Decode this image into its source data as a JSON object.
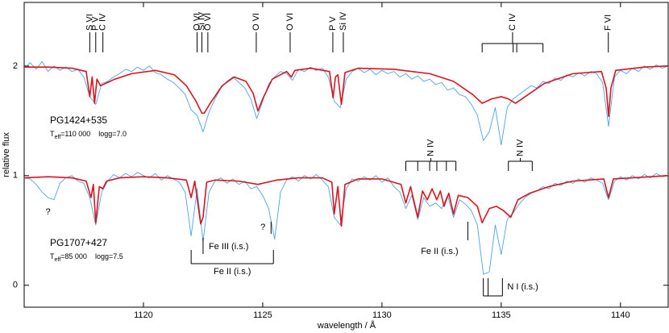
{
  "chart_data": {
    "type": "line",
    "xlabel": "wavelength / Å",
    "ylabel": "relative flux",
    "xlim": [
      1115,
      1142
    ],
    "ylim": [
      -0.2,
      2.58
    ],
    "xticks": [
      1120,
      1125,
      1130,
      1135,
      1140
    ],
    "yticks": [
      0,
      1,
      2
    ],
    "grid": false,
    "series": [
      {
        "color": "#4aa3e6",
        "x": [
          1115.0,
          1115.25,
          1115.5,
          1115.75,
          1116.0,
          1116.25,
          1116.5,
          1116.75,
          1117.0,
          1117.25,
          1117.5,
          1117.75,
          1118.0,
          1118.25,
          1118.5,
          1118.75,
          1119.0,
          1119.25,
          1119.5,
          1119.75,
          1120.0,
          1120.25,
          1120.5,
          1120.75,
          1121.0,
          1121.25,
          1121.5,
          1121.75,
          1122.0,
          1122.25,
          1122.5,
          1122.75,
          1123.0,
          1123.25,
          1123.5,
          1123.75,
          1124.0,
          1124.25,
          1124.5,
          1124.75,
          1125.0,
          1125.25,
          1125.5,
          1125.75,
          1126.0,
          1126.25,
          1126.5,
          1126.75,
          1127.0,
          1127.25,
          1127.5,
          1127.75,
          1128.0,
          1128.25,
          1128.5,
          1128.75,
          1129.0,
          1129.25,
          1129.5,
          1129.75,
          1130.0,
          1130.25,
          1130.5,
          1130.75,
          1131.0,
          1131.25,
          1131.5,
          1131.75,
          1132.0,
          1132.25,
          1132.5,
          1132.75,
          1133.0,
          1133.25,
          1133.5,
          1133.75,
          1134.0,
          1134.25,
          1134.5,
          1134.75,
          1135.0,
          1135.25,
          1135.5,
          1135.75,
          1136.0,
          1136.25,
          1136.5,
          1136.75,
          1137.0,
          1137.25,
          1137.5,
          1137.75,
          1138.0,
          1138.25,
          1138.5,
          1138.75,
          1139.0,
          1139.25,
          1139.5,
          1139.75,
          1140.0,
          1140.25,
          1140.5,
          1140.75,
          1141.0,
          1141.25,
          1141.5,
          1141.75,
          1142.0
        ],
        "values": [
          1.98,
          2.03,
          1.97,
          2.04,
          1.95,
          2.0,
          1.96,
          1.99,
          1.95,
          1.97,
          1.9,
          1.72,
          1.65,
          1.84,
          1.86,
          1.9,
          1.93,
          1.97,
          1.95,
          1.99,
          1.96,
          2.0,
          1.94,
          1.92,
          1.88,
          1.85,
          1.8,
          1.74,
          1.6,
          1.55,
          1.4,
          1.58,
          1.7,
          1.8,
          1.86,
          1.9,
          1.85,
          1.8,
          1.7,
          1.52,
          1.68,
          1.84,
          1.9,
          1.95,
          1.93,
          1.87,
          1.97,
          1.95,
          1.99,
          1.96,
          1.98,
          1.9,
          1.68,
          1.62,
          1.88,
          1.95,
          1.98,
          1.94,
          1.97,
          1.92,
          1.96,
          1.93,
          1.95,
          1.9,
          1.93,
          1.88,
          1.91,
          1.86,
          1.88,
          1.83,
          1.85,
          1.78,
          1.8,
          1.74,
          1.72,
          1.65,
          1.55,
          1.32,
          1.4,
          1.62,
          1.28,
          1.62,
          1.7,
          1.74,
          1.78,
          1.82,
          1.8,
          1.86,
          1.84,
          1.89,
          1.87,
          1.92,
          1.9,
          1.94,
          1.91,
          1.95,
          1.93,
          1.85,
          1.45,
          1.9,
          1.96,
          1.93,
          1.98,
          1.95,
          2.0,
          1.97,
          2.01,
          1.98,
          2.0
        ]
      },
      {
        "color": "#d9141e",
        "x": [
          1115,
          1116,
          1117,
          1117.6,
          1117.75,
          1117.85,
          1117.95,
          1118.05,
          1118.2,
          1118.4,
          1118.8,
          1119.5,
          1120.5,
          1121.3,
          1121.8,
          1122.2,
          1122.45,
          1122.55,
          1122.8,
          1123.3,
          1123.8,
          1124.3,
          1124.6,
          1124.8,
          1125.0,
          1125.4,
          1126.0,
          1126.2,
          1126.35,
          1127.0,
          1127.8,
          1127.95,
          1128.05,
          1128.15,
          1128.3,
          1128.45,
          1129.0,
          1130.5,
          1132.0,
          1133.0,
          1133.8,
          1134.2,
          1134.6,
          1135.0,
          1135.3,
          1135.6,
          1136.0,
          1136.8,
          1138.0,
          1139.2,
          1139.4,
          1139.5,
          1139.6,
          1139.8,
          1141.0,
          1142
        ],
        "values": [
          1.99,
          1.99,
          1.98,
          1.95,
          1.72,
          1.9,
          1.66,
          1.88,
          1.82,
          1.84,
          1.88,
          1.93,
          1.96,
          1.92,
          1.82,
          1.68,
          1.57,
          1.57,
          1.66,
          1.82,
          1.9,
          1.86,
          1.75,
          1.59,
          1.7,
          1.88,
          1.95,
          1.9,
          1.96,
          1.98,
          1.95,
          1.71,
          1.9,
          1.92,
          1.65,
          1.94,
          1.98,
          1.97,
          1.93,
          1.86,
          1.74,
          1.66,
          1.7,
          1.72,
          1.7,
          1.66,
          1.72,
          1.84,
          1.93,
          1.95,
          1.8,
          1.54,
          1.8,
          1.96,
          1.99,
          2.0
        ]
      },
      {
        "color": "#4aa3e6",
        "x": [
          1115.0,
          1115.25,
          1115.5,
          1115.75,
          1116.0,
          1116.25,
          1116.5,
          1116.75,
          1117.0,
          1117.25,
          1117.5,
          1117.75,
          1118.0,
          1118.25,
          1118.5,
          1118.75,
          1119.0,
          1119.25,
          1119.5,
          1119.75,
          1120.0,
          1120.25,
          1120.5,
          1120.75,
          1121.0,
          1121.25,
          1121.5,
          1121.75,
          1122.0,
          1122.25,
          1122.5,
          1122.75,
          1123.0,
          1123.25,
          1123.5,
          1123.75,
          1124.0,
          1124.25,
          1124.5,
          1124.75,
          1125.0,
          1125.25,
          1125.5,
          1125.75,
          1126.0,
          1126.25,
          1126.5,
          1126.75,
          1127.0,
          1127.25,
          1127.5,
          1127.75,
          1128.0,
          1128.25,
          1128.5,
          1128.75,
          1129.0,
          1129.25,
          1129.5,
          1129.75,
          1130.0,
          1130.25,
          1130.5,
          1130.75,
          1131.0,
          1131.25,
          1131.5,
          1131.75,
          1132.0,
          1132.25,
          1132.5,
          1132.75,
          1133.0,
          1133.25,
          1133.5,
          1133.75,
          1134.0,
          1134.25,
          1134.5,
          1134.75,
          1135.0,
          1135.25,
          1135.5,
          1135.75,
          1136.0,
          1136.25,
          1136.5,
          1136.75,
          1137.0,
          1137.25,
          1137.5,
          1137.75,
          1138.0,
          1138.25,
          1138.5,
          1138.75,
          1139.0,
          1139.25,
          1139.5,
          1139.75,
          1140.0,
          1140.25,
          1140.5,
          1140.75,
          1141.0,
          1141.25,
          1141.5,
          1141.75,
          1142.0
        ],
        "values": [
          0.98,
          0.97,
          0.92,
          0.85,
          0.8,
          0.78,
          0.93,
          0.98,
          1.0,
          0.95,
          0.93,
          0.8,
          0.55,
          0.85,
          0.95,
          1.01,
          0.98,
          1.02,
          0.99,
          1.03,
          1.0,
          0.98,
          1.02,
          0.96,
          1.0,
          0.97,
          0.94,
          0.85,
          0.45,
          0.88,
          0.4,
          0.85,
          0.95,
          0.98,
          0.93,
          0.97,
          0.92,
          0.95,
          0.88,
          0.9,
          0.82,
          0.7,
          0.42,
          0.85,
          0.96,
          0.99,
          0.95,
          1.0,
          0.97,
          1.01,
          0.96,
          0.9,
          0.62,
          0.55,
          0.88,
          0.97,
          0.95,
          0.99,
          0.96,
          1.0,
          0.94,
          0.98,
          0.9,
          0.85,
          0.7,
          0.82,
          0.6,
          0.8,
          0.72,
          0.75,
          0.7,
          0.82,
          0.62,
          0.78,
          0.74,
          0.68,
          0.55,
          0.1,
          0.12,
          0.55,
          0.28,
          0.6,
          0.66,
          0.74,
          0.8,
          0.84,
          0.86,
          0.9,
          0.88,
          0.93,
          0.91,
          0.95,
          0.93,
          0.97,
          0.94,
          0.98,
          0.96,
          0.93,
          0.78,
          0.95,
          0.99,
          0.96,
          1.0,
          0.97,
          1.01,
          0.98,
          1.02,
          0.99,
          1.0
        ]
      },
      {
        "color": "#d9141e",
        "x": [
          1115,
          1116,
          1117,
          1117.6,
          1117.8,
          1117.9,
          1118.0,
          1118.15,
          1118.3,
          1118.45,
          1119,
          1120,
          1121,
          1121.8,
          1122.0,
          1122.15,
          1122.4,
          1122.5,
          1122.65,
          1123,
          1124,
          1124.8,
          1125.6,
          1126.5,
          1127.5,
          1127.9,
          1128.0,
          1128.15,
          1128.3,
          1128.45,
          1129,
          1130,
          1130.8,
          1131.0,
          1131.2,
          1131.5,
          1131.7,
          1131.9,
          1132.1,
          1132.3,
          1132.45,
          1132.6,
          1132.8,
          1133.0,
          1133.2,
          1133.6,
          1134.0,
          1134.2,
          1134.5,
          1134.8,
          1135.1,
          1135.4,
          1135.7,
          1136.2,
          1137.0,
          1138.0,
          1139.3,
          1139.5,
          1139.7,
          1140.5,
          1142
        ],
        "values": [
          0.98,
          0.99,
          0.98,
          0.95,
          0.8,
          0.92,
          0.57,
          0.9,
          0.88,
          0.95,
          0.98,
          0.99,
          0.98,
          0.96,
          0.8,
          0.95,
          0.56,
          0.62,
          0.94,
          0.96,
          0.95,
          0.92,
          0.96,
          0.98,
          0.98,
          0.94,
          0.65,
          0.9,
          0.54,
          0.92,
          0.97,
          0.97,
          0.92,
          0.75,
          0.9,
          0.62,
          0.86,
          0.78,
          0.88,
          0.78,
          0.86,
          0.72,
          0.84,
          0.65,
          0.82,
          0.8,
          0.72,
          0.57,
          0.7,
          0.72,
          0.68,
          0.62,
          0.78,
          0.84,
          0.9,
          0.95,
          0.97,
          0.8,
          0.97,
          0.98,
          1.0
        ]
      }
    ],
    "stars": [
      {
        "name": "PG1424+535",
        "teff_symbol": "T",
        "teff_sub": "eff",
        "teff_value": "=110 000",
        "logg": "logg=7.0"
      },
      {
        "name": "PG1707+427",
        "teff_symbol": "T",
        "teff_sub": "eff",
        "teff_value": "=85 000",
        "logg": "logg=7.5"
      }
    ],
    "annotations": [
      {
        "text": "S VI",
        "x": [
          1117.75
        ]
      },
      {
        "text": "P V",
        "x": [
          1118.0
        ]
      },
      {
        "text": "C IV",
        "x": [
          1118.3
        ]
      },
      {
        "text": "O VI",
        "x": [
          1122.25
        ]
      },
      {
        "text": "Si IV",
        "x": [
          1122.45
        ]
      },
      {
        "text": "O VI",
        "x": [
          1122.7
        ]
      },
      {
        "text": "O VI",
        "x": [
          1124.73
        ]
      },
      {
        "text": "O VI",
        "x": [
          1126.15
        ]
      },
      {
        "text": "P V",
        "x": [
          1127.94
        ]
      },
      {
        "text": "Si IV",
        "x": [
          1128.38
        ]
      },
      {
        "text": "C IV",
        "x": [
          1134.2,
          1135.5,
          1135.65,
          1136.75
        ]
      },
      {
        "text": "F VI",
        "x": [
          1139.49
        ]
      },
      {
        "text": "N IV",
        "x": [
          1131.0,
          1131.5,
          1132.0,
          1132.3,
          1132.7,
          1133.1
        ]
      },
      {
        "text": "N IV",
        "x": [
          1135.3,
          1136.3
        ]
      },
      {
        "text": "?",
        "x": [
          1116.0
        ]
      },
      {
        "text": "Fe III (i.s.)",
        "x": [
          1122.5
        ]
      },
      {
        "text": "?",
        "x": [
          1125.35
        ]
      },
      {
        "text": "Fe II (i.s.)",
        "x": [
          1122.0,
          1125.45
        ]
      },
      {
        "text": "Fe II (i.s.)",
        "x": [
          1133.6
        ]
      },
      {
        "text": "N I (i.s.)",
        "x": [
          1134.25,
          1134.45,
          1135.05
        ]
      }
    ]
  }
}
